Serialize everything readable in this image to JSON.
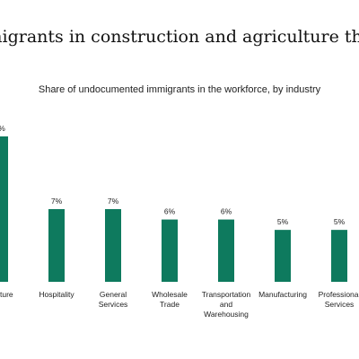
{
  "chart_data": {
    "type": "bar",
    "title": "ated immigrants in construction and agriculture than in",
    "subtitle": "Share of undocumented immigrants in the workforce, by industry",
    "categories": [
      [
        "ture"
      ],
      [
        "Hospitality"
      ],
      [
        "General",
        "Services"
      ],
      [
        "Wholesale",
        "Trade"
      ],
      [
        "Transportation",
        "and",
        "Warehousing"
      ],
      [
        "Manufacturing"
      ],
      [
        "Professional",
        "Services"
      ]
    ],
    "values": [
      14,
      7,
      7,
      6,
      6,
      5,
      5
    ],
    "labels": [
      "%",
      "7%",
      "7%",
      "6%",
      "6%",
      "5%",
      "5%"
    ],
    "ylim": [
      0,
      14
    ],
    "bar_color": "#0e7a5e",
    "grid": false,
    "xlabel": "",
    "ylabel": ""
  }
}
